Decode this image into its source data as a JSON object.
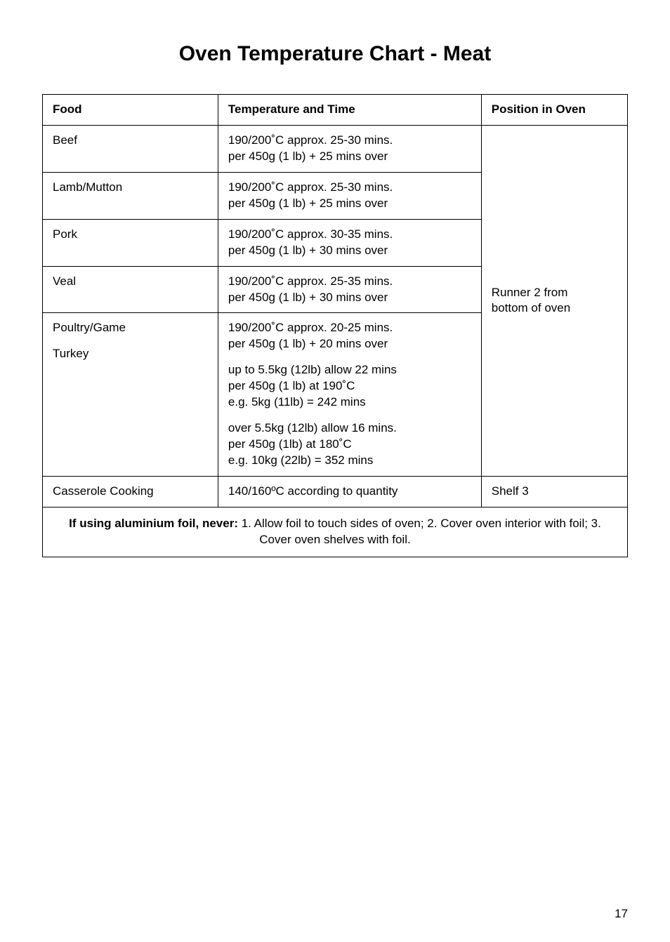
{
  "page": {
    "title": "Oven Temperature Chart - Meat",
    "number": "17"
  },
  "table": {
    "headers": {
      "food": "Food",
      "temp": "Temperature and Time",
      "position": "Position in Oven"
    },
    "rows": [
      {
        "food": "Beef",
        "temp": "190/200˚C approx. 25-30 mins.\nper 450g (1 lb) + 25 mins over"
      },
      {
        "food": "Lamb/Mutton",
        "temp": "190/200˚C approx. 25-30 mins.\nper 450g (1 lb) + 25 mins over"
      },
      {
        "food": "Pork",
        "temp": "190/200˚C approx. 30-35 mins.\nper 450g (1 lb) + 30 mins over"
      },
      {
        "food": "Veal",
        "temp": "190/200˚C approx. 25-35 mins.\nper 450g (1 lb) + 30 mins over"
      }
    ],
    "poultry_turkey": {
      "food1": "Poultry/Game",
      "temp1": "190/200˚C approx. 20-25 mins.\nper 450g (1 lb) + 20 mins over",
      "food2": "Turkey",
      "temp2a": "up to 5.5kg (12lb) allow 22 mins\nper 450g (1 lb) at 190˚C\ne.g. 5kg (11lb) = 242 mins",
      "temp2b": "over 5.5kg (12lb) allow 16 mins.\nper 450g (1lb) at 180˚C\ne.g. 10kg (22lb) = 352 mins"
    },
    "merged_position": "Runner 2 from\nbottom of oven",
    "casserole": {
      "food": "Casserole Cooking",
      "temp": "140/160ºC according to quantity",
      "position": "Shelf 3"
    },
    "footnote": {
      "bold": "If using aluminium foil, never:",
      "rest": " 1. Allow foil to touch sides of oven; 2. Cover oven interior with foil; 3. Cover oven shelves with foil."
    }
  },
  "style": {
    "background_color": "#ffffff",
    "text_color": "#000000",
    "border_color": "#000000",
    "title_fontsize": 30,
    "body_fontsize": 17
  }
}
